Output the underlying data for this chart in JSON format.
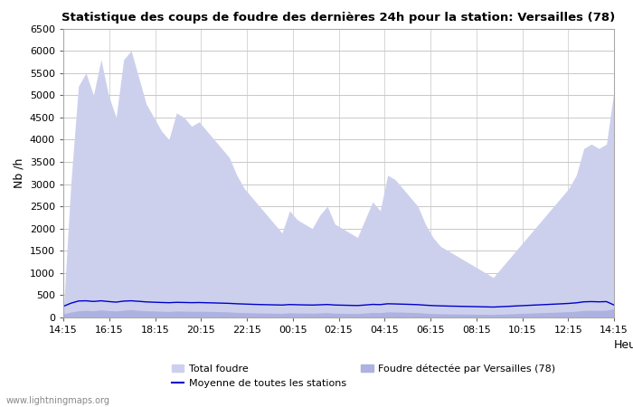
{
  "title": "Statistique des coups de foudre des dernières 24h pour la station: Versailles (78)",
  "xlabel": "Heure",
  "ylabel": "Nb /h",
  "ylim": [
    0,
    6500
  ],
  "yticks": [
    0,
    500,
    1000,
    1500,
    2000,
    2500,
    3000,
    3500,
    4000,
    4500,
    5000,
    5500,
    6000,
    6500
  ],
  "x_labels": [
    "14:15",
    "16:15",
    "18:15",
    "20:15",
    "22:15",
    "00:15",
    "02:15",
    "04:15",
    "06:15",
    "08:15",
    "10:15",
    "12:15",
    "14:15"
  ],
  "watermark": "www.lightningmaps.org",
  "color_total": "#cdd0ed",
  "color_versailles": "#adb2e0",
  "color_line": "#0000cc",
  "bg_color": "#ffffff",
  "grid_color": "#c8c8c8",
  "total_foudre": [
    100,
    3000,
    5200,
    5500,
    5000,
    5800,
    5000,
    4500,
    5800,
    6000,
    5400,
    4800,
    4500,
    4200,
    4000,
    4600,
    4500,
    4300,
    4400,
    4200,
    4000,
    3800,
    3600,
    3200,
    2900,
    2700,
    2500,
    2300,
    2100,
    1900,
    2400,
    2200,
    2100,
    2000,
    2300,
    2500,
    2100,
    2000,
    1900,
    1800,
    2200,
    2600,
    2400,
    3200,
    3100,
    2900,
    2700,
    2500,
    2100,
    1800,
    1600,
    1500,
    1400,
    1300,
    1200,
    1100,
    1000,
    900,
    1100,
    1300,
    1500,
    1700,
    1900,
    2100,
    2300,
    2500,
    2700,
    2900,
    3200,
    3800,
    3900,
    3800,
    3900,
    5100
  ],
  "versailles": [
    80,
    120,
    150,
    160,
    150,
    170,
    155,
    145,
    165,
    175,
    160,
    150,
    145,
    140,
    135,
    145,
    142,
    138,
    140,
    137,
    133,
    128,
    123,
    115,
    110,
    105,
    100,
    98,
    95,
    92,
    105,
    100,
    98,
    95,
    102,
    108,
    96,
    93,
    90,
    88,
    100,
    112,
    108,
    125,
    122,
    118,
    113,
    108,
    96,
    88,
    83,
    80,
    78,
    76,
    74,
    72,
    70,
    68,
    74,
    80,
    87,
    93,
    99,
    105,
    111,
    117,
    123,
    130,
    140,
    158,
    162,
    158,
    162,
    200
  ],
  "moyenne": [
    250,
    320,
    370,
    375,
    360,
    375,
    358,
    345,
    368,
    375,
    363,
    350,
    343,
    337,
    332,
    340,
    337,
    333,
    336,
    331,
    327,
    322,
    317,
    308,
    302,
    296,
    291,
    287,
    283,
    279,
    291,
    286,
    282,
    279,
    285,
    292,
    280,
    276,
    272,
    268,
    280,
    294,
    289,
    308,
    304,
    299,
    294,
    288,
    276,
    267,
    261,
    256,
    253,
    249,
    246,
    242,
    238,
    234,
    242,
    250,
    259,
    267,
    275,
    283,
    291,
    299,
    307,
    316,
    329,
    352,
    357,
    352,
    357,
    280
  ]
}
